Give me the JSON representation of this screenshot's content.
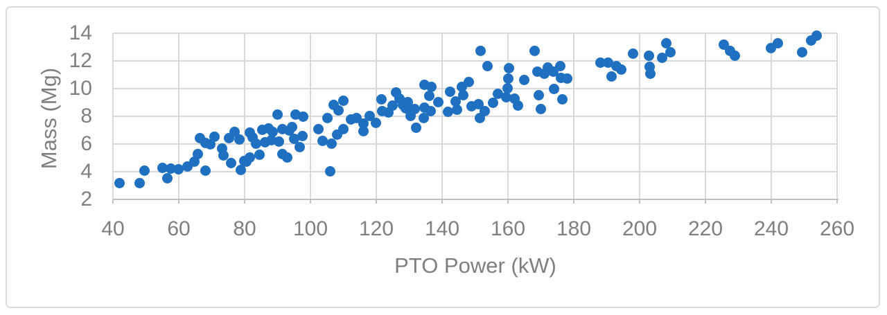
{
  "figure": {
    "border_color": "#dcdcdc",
    "background": "#ffffff",
    "text_color": "#7f7f7f",
    "gridline_color": "#d9d9d9",
    "axis_line_color": "#bfbfbf"
  },
  "chart_data": {
    "type": "scatter",
    "title": "",
    "xlabel": "PTO Power (kW)",
    "ylabel": "Mass (Mg)",
    "xlim": [
      40,
      260
    ],
    "ylim": [
      2,
      14
    ],
    "x_ticks": [
      40,
      60,
      80,
      100,
      120,
      140,
      160,
      180,
      200,
      220,
      240,
      260
    ],
    "y_ticks": [
      2,
      4,
      6,
      8,
      10,
      12,
      14
    ],
    "grid": true,
    "legend_position": "none",
    "marker_color": "#1f70c1",
    "marker_shape": "circle",
    "series_name": "Tractor mass vs PTO power",
    "points": [
      [
        42,
        3.2
      ],
      [
        48,
        3.2
      ],
      [
        49.5,
        4.1
      ],
      [
        55,
        4.3
      ],
      [
        56.5,
        3.55
      ],
      [
        57.5,
        4.25
      ],
      [
        59.8,
        4.2
      ],
      [
        62.7,
        4.4
      ],
      [
        64.8,
        4.75
      ],
      [
        65.7,
        5.3
      ],
      [
        66.5,
        6.45
      ],
      [
        68,
        6.1
      ],
      [
        68,
        4.1
      ],
      [
        69.5,
        6.0
      ],
      [
        70.8,
        6.55
      ],
      [
        73.1,
        5.7
      ],
      [
        73.5,
        5.2
      ],
      [
        75.3,
        6.45
      ],
      [
        75.8,
        4.65
      ],
      [
        77,
        6.9
      ],
      [
        78.5,
        6.35
      ],
      [
        78.9,
        4.15
      ],
      [
        79.8,
        4.8
      ],
      [
        80.6,
        4.75
      ],
      [
        81.5,
        6.85
      ],
      [
        81.5,
        5.05
      ],
      [
        82.5,
        6.5
      ],
      [
        83.5,
        6.05
      ],
      [
        84.6,
        5.25
      ],
      [
        85.3,
        7.05
      ],
      [
        86.3,
        6.15
      ],
      [
        87.2,
        7.15
      ],
      [
        88,
        6.3
      ],
      [
        88.5,
        6.9
      ],
      [
        90,
        8.15
      ],
      [
        90.5,
        6.2
      ],
      [
        91.4,
        5.3
      ],
      [
        91.5,
        7.1
      ],
      [
        93,
        5.05
      ],
      [
        93.5,
        7.0
      ],
      [
        94.5,
        7.25
      ],
      [
        95,
        6.4
      ],
      [
        95.5,
        8.15
      ],
      [
        96.8,
        5.8
      ],
      [
        97.5,
        6.6
      ],
      [
        97.7,
        8.0
      ],
      [
        102.5,
        7.1
      ],
      [
        103.6,
        6.25
      ],
      [
        105.1,
        7.9
      ],
      [
        106,
        4.05
      ],
      [
        106.5,
        6.05
      ],
      [
        107,
        8.85
      ],
      [
        108.2,
        6.7
      ],
      [
        108.5,
        8.45
      ],
      [
        110,
        9.15
      ],
      [
        110,
        7.1
      ],
      [
        112.4,
        7.8
      ],
      [
        114.1,
        7.9
      ],
      [
        116,
        6.95
      ],
      [
        116.2,
        7.5
      ],
      [
        118,
        8.05
      ],
      [
        119.8,
        7.55
      ],
      [
        121.5,
        9.25
      ],
      [
        121.7,
        8.4
      ],
      [
        123.6,
        8.3
      ],
      [
        125,
        8.8
      ],
      [
        126,
        9.75
      ],
      [
        127,
        9.3
      ],
      [
        128,
        8.85
      ],
      [
        129,
        8.6
      ],
      [
        129.5,
        9.05
      ],
      [
        130.5,
        8.05
      ],
      [
        131.6,
        8.55
      ],
      [
        132,
        7.2
      ],
      [
        134.5,
        7.9
      ],
      [
        134.7,
        10.3
      ],
      [
        134.7,
        8.65
      ],
      [
        136,
        9.5
      ],
      [
        136.6,
        8.4
      ],
      [
        136.8,
        10.15
      ],
      [
        138.9,
        9.05
      ],
      [
        141.7,
        8.35
      ],
      [
        142.5,
        9.8
      ],
      [
        144,
        9.1
      ],
      [
        144.6,
        8.5
      ],
      [
        146,
        10.15
      ],
      [
        146.5,
        9.55
      ],
      [
        148,
        10.5
      ],
      [
        149,
        8.75
      ],
      [
        151,
        8.9
      ],
      [
        151.5,
        7.9
      ],
      [
        151.6,
        12.75
      ],
      [
        153,
        8.4
      ],
      [
        153.7,
        11.65
      ],
      [
        155.5,
        9.0
      ],
      [
        157,
        9.65
      ],
      [
        159.4,
        9.4
      ],
      [
        159.8,
        10.05
      ],
      [
        160,
        10.75
      ],
      [
        160.3,
        11.5
      ],
      [
        162,
        9.3
      ],
      [
        163,
        8.8
      ],
      [
        165,
        10.65
      ],
      [
        168.2,
        12.75
      ],
      [
        169,
        11.25
      ],
      [
        169.3,
        9.55
      ],
      [
        170,
        8.55
      ],
      [
        171,
        11.1
      ],
      [
        172,
        11.55
      ],
      [
        173.7,
        11.25
      ],
      [
        174,
        10.0
      ],
      [
        175.8,
        11.65
      ],
      [
        176.2,
        10.8
      ],
      [
        176.6,
        9.25
      ],
      [
        178,
        10.75
      ],
      [
        188.2,
        11.9
      ],
      [
        190.5,
        11.9
      ],
      [
        191.4,
        10.9
      ],
      [
        193,
        11.65
      ],
      [
        194.5,
        11.4
      ],
      [
        197.9,
        12.55
      ],
      [
        202.9,
        12.4
      ],
      [
        203,
        11.6
      ],
      [
        203.2,
        11.1
      ],
      [
        206.9,
        12.25
      ],
      [
        208,
        13.3
      ],
      [
        209.3,
        12.65
      ],
      [
        225.5,
        13.2
      ],
      [
        227.5,
        12.75
      ],
      [
        229,
        12.4
      ],
      [
        239.8,
        12.95
      ],
      [
        242,
        13.3
      ],
      [
        249.3,
        12.65
      ],
      [
        252,
        13.5
      ],
      [
        253.8,
        13.85
      ]
    ]
  }
}
